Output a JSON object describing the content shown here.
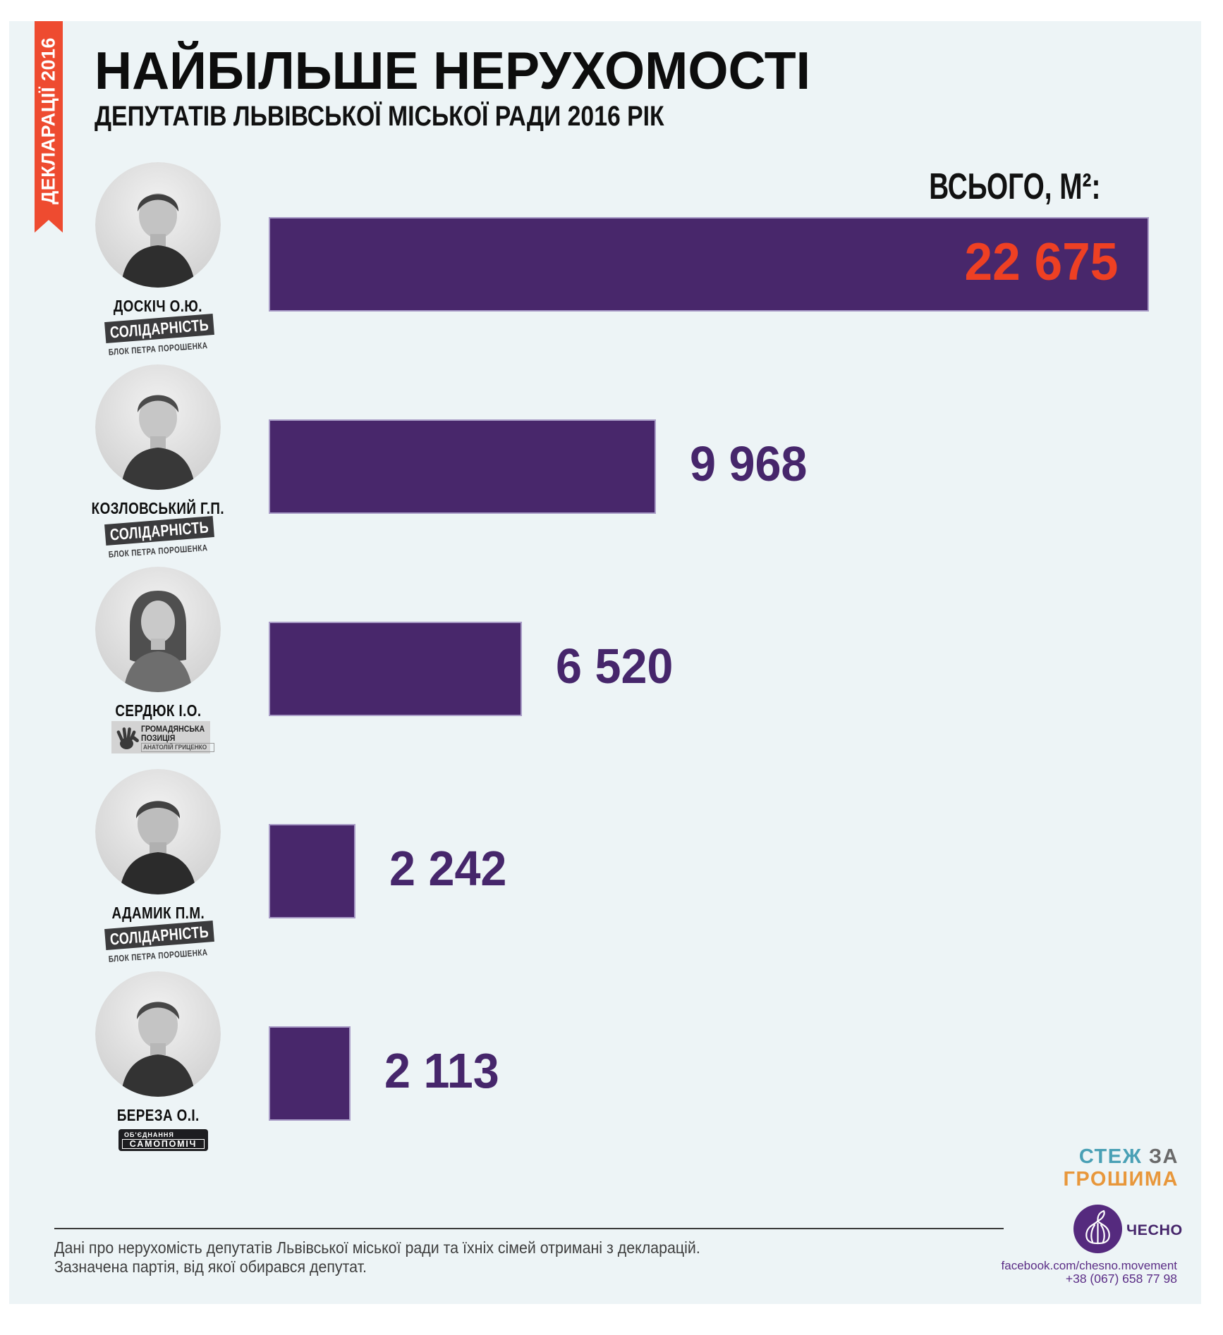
{
  "ribbon": {
    "label": "ДЕКЛАРАЦІЇ 2016",
    "color": "#ee4b30"
  },
  "header": {
    "title": "НАЙБІЛЬШЕ НЕРУХОМОСТІ",
    "subtitle": "ДЕПУТАТІВ ЛЬВІВСЬКОЇ МІСЬКОЇ РАДИ 2016 РІК",
    "total_label": "ВСЬОГО, М²:"
  },
  "chart_data": {
    "type": "bar",
    "orientation": "horizontal",
    "title": "НАЙБІЛЬШЕ НЕРУХОМОСТІ",
    "subtitle": "ДЕПУТАТІВ ЛЬВІВСЬКОЇ МІСЬКОЇ РАДИ 2016 РІК",
    "value_axis_label": "ВСЬОГО, М²:",
    "categories": [
      "ДОСКІЧ О.Ю.",
      "КОЗЛОВСЬКИЙ Г.П.",
      "СЕРДЮК І.О.",
      "АДАМИК П.М.",
      "БЕРЕЗА О.І."
    ],
    "values": [
      22675,
      9968,
      6520,
      2242,
      2113
    ],
    "value_labels": [
      "22 675",
      "9 968",
      "6 520",
      "2 242",
      "2 113"
    ],
    "max_value": 22675,
    "bar_color": "#48276b",
    "first_value_color": "#ee4023",
    "value_color": "#46266b",
    "legend": "none",
    "grid": "off"
  },
  "rows": [
    {
      "name": "ДОСКІЧ О.Ю.",
      "party": "СОЛІДАРНІСТЬ",
      "party_sub": "БЛОК ПЕТРА ПОРОШЕНКА",
      "value_label": "22 675"
    },
    {
      "name": "КОЗЛОВСЬКИЙ Г.П.",
      "party": "СОЛІДАРНІСТЬ",
      "party_sub": "БЛОК ПЕТРА ПОРОШЕНКА",
      "value_label": "9 968"
    },
    {
      "name": "СЕРДЮК І.О.",
      "party_line1": "ГРОМАДЯНСЬКА",
      "party_line2": "ПОЗИЦІЯ",
      "party_sub": "АНАТОЛІЙ ГРИЦЕНКО",
      "value_label": "6 520"
    },
    {
      "name": "АДАМИК П.М.",
      "party": "СОЛІДАРНІСТЬ",
      "party_sub": "БЛОК ПЕТРА ПОРОШЕНКА",
      "value_label": "2 242"
    },
    {
      "name": "БЕРЕЗА О.І.",
      "party_top": "ОБ'ЄДНАННЯ",
      "party": "САМОПОМІЧ",
      "value_label": "2 113"
    }
  ],
  "footer": {
    "note_line1": "Дані про нерухомість депутатів Львівської міської ради та їхніх сімей отримані з декларацій.",
    "note_line2": "Зазначена партія, від якої обирався депутат.",
    "brand_word1": "СТЕЖ",
    "brand_word2": " ЗА",
    "brand_line2": "ГРОШИМА",
    "chesno_label": "ЧЕСНО",
    "facebook": "facebook.com/chesno.movement",
    "phone": "+38 (067) 658 77 98"
  }
}
